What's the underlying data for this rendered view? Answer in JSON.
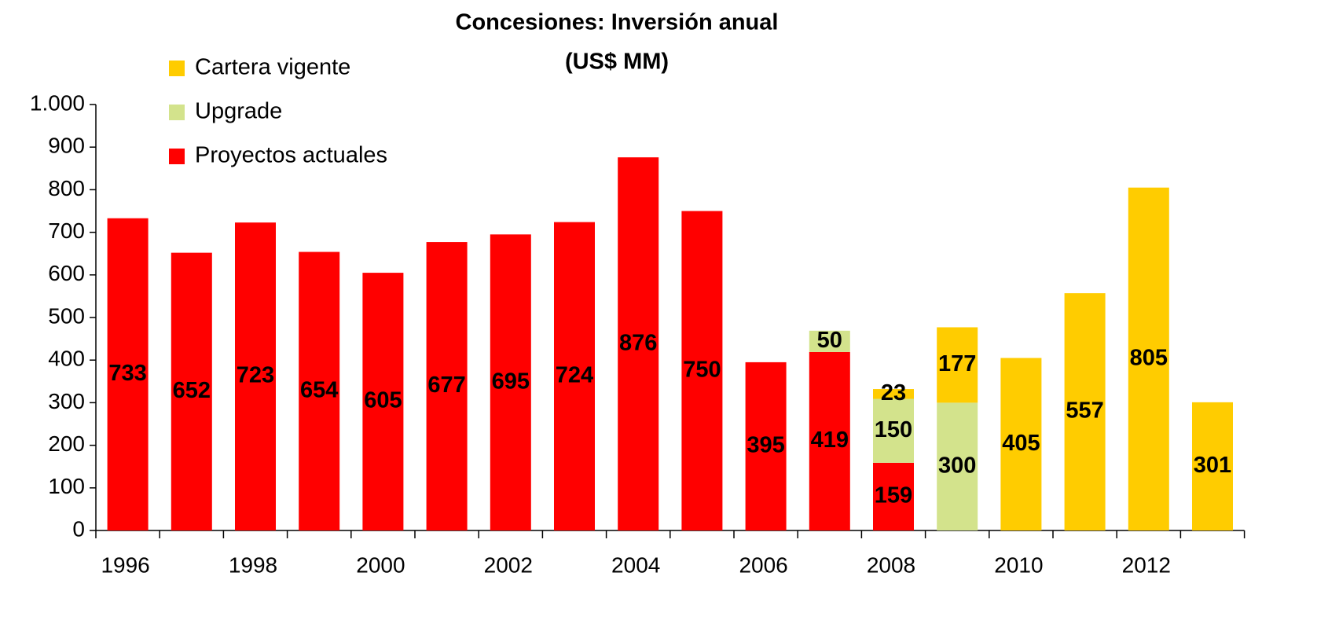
{
  "chart_data": {
    "type": "stacked-bar",
    "title": "Concesiones: Inversión anual",
    "subtitle": "(US$ MM)",
    "categories": [
      "1996",
      null,
      "1998",
      null,
      "2000",
      null,
      "2002",
      null,
      "2004",
      null,
      "2006",
      null,
      "2008",
      null,
      "2010",
      null,
      "2012",
      null
    ],
    "series": [
      {
        "name": "Proyectos actuales",
        "color": "#ff0000",
        "values": [
          733,
          652,
          723,
          654,
          605,
          677,
          695,
          724,
          876,
          750,
          395,
          419,
          159,
          null,
          null,
          null,
          null,
          null
        ]
      },
      {
        "name": "Upgrade",
        "color": "#d3e38c",
        "values": [
          null,
          null,
          null,
          null,
          null,
          null,
          null,
          null,
          null,
          null,
          null,
          50,
          150,
          300,
          null,
          null,
          null,
          null
        ]
      },
      {
        "name": "Cartera vigente",
        "color": "#ffcc00",
        "values": [
          null,
          null,
          null,
          null,
          null,
          null,
          null,
          null,
          null,
          null,
          null,
          null,
          23,
          177,
          405,
          557,
          805,
          301
        ]
      }
    ],
    "ylim": [
      0,
      1000
    ],
    "yticks": [
      0,
      100,
      200,
      300,
      400,
      500,
      600,
      700,
      800,
      900,
      {
        "value": 1000,
        "label": "1.000"
      }
    ],
    "grid": false,
    "legend": "top-left"
  }
}
